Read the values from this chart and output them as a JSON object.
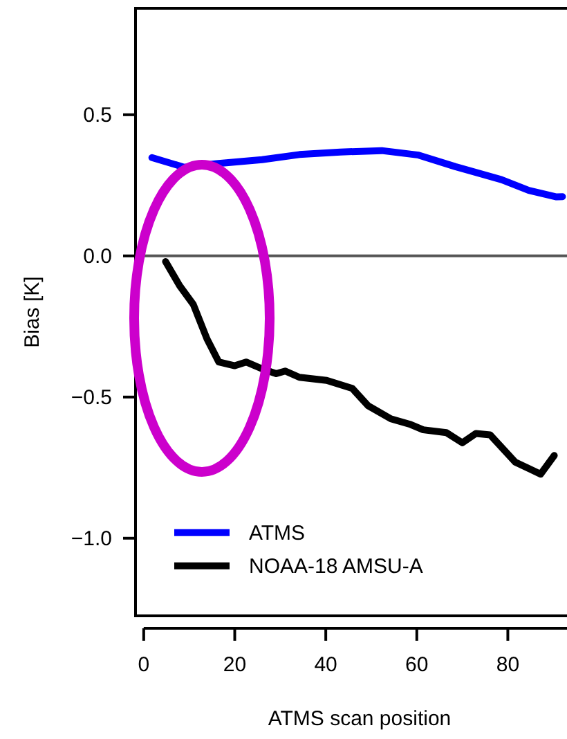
{
  "chart_data": {
    "type": "line",
    "xlabel": "ATMS scan position",
    "ylabel": "Bias [K]",
    "xlim": [
      -1.8,
      93
    ],
    "ylim": [
      -1.275,
      0.877
    ],
    "xticks": [
      0,
      20,
      40,
      60,
      80
    ],
    "yticks": [
      {
        "value": -1,
        "label": "−1.0"
      },
      {
        "value": -0.5,
        "label": "−0.5"
      },
      {
        "value": 0,
        "label": "0.0"
      },
      {
        "value": 0.5,
        "label": "0.5"
      }
    ],
    "grid": false,
    "legend": "bottom left",
    "line_style": "solid",
    "ref_lines": [
      {
        "axis": "y",
        "value": 0,
        "color": "#555555"
      }
    ],
    "series": [
      {
        "name": "ATMS",
        "color": "#0000ff",
        "x": [
          1.8,
          8.9,
          16,
          26,
          34.2,
          43.2,
          52.3,
          60.4,
          68.5,
          78.6,
          84.6,
          90.7,
          92
        ],
        "values": [
          0.348,
          0.314,
          0.327,
          0.341,
          0.359,
          0.368,
          0.373,
          0.357,
          0.316,
          0.27,
          0.232,
          0.209,
          0.21
        ]
      },
      {
        "name": "NOAA-18 AMSU-A",
        "color": "#000000",
        "x": [
          4.8,
          7.9,
          10.9,
          13.9,
          16.5,
          20,
          22.5,
          26,
          29.1,
          31.1,
          34.2,
          40.2,
          45.8,
          49.3,
          54.3,
          58.4,
          61.4,
          66.5,
          70,
          73,
          76.1,
          81.6,
          87.2,
          90.2
        ],
        "values": [
          -0.02,
          -0.106,
          -0.172,
          -0.294,
          -0.376,
          -0.389,
          -0.376,
          -0.4,
          -0.417,
          -0.408,
          -0.43,
          -0.441,
          -0.469,
          -0.531,
          -0.577,
          -0.596,
          -0.616,
          -0.626,
          -0.662,
          -0.629,
          -0.634,
          -0.73,
          -0.773,
          -0.707
        ]
      }
    ]
  }
}
